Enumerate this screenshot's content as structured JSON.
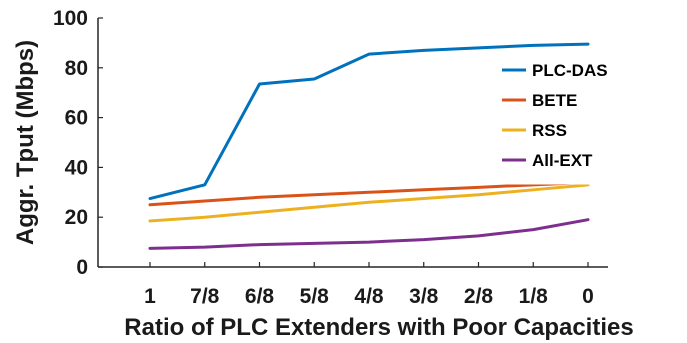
{
  "chart_data": {
    "type": "line",
    "title": "",
    "xlabel": "Ratio of PLC Extenders with Poor Capacities",
    "ylabel": "Aggr. Tput (Mbps)",
    "categories": [
      "1",
      "7/8",
      "6/8",
      "5/8",
      "4/8",
      "3/8",
      "2/8",
      "1/8",
      "0"
    ],
    "ylim": [
      0,
      100
    ],
    "yticks": [
      "0",
      "20",
      "40",
      "60",
      "80",
      "100"
    ],
    "grid": false,
    "legend_position": "top-right",
    "series": [
      {
        "name": "PLC-DAS",
        "color": "#0072bd",
        "values": [
          27.5,
          33,
          73.5,
          75.5,
          85.5,
          87,
          88,
          89,
          89.5
        ]
      },
      {
        "name": "BETE",
        "color": "#d95319",
        "values": [
          25,
          26.5,
          28,
          29,
          30,
          31,
          32,
          33,
          34
        ]
      },
      {
        "name": "RSS",
        "color": "#edb120",
        "values": [
          18.5,
          20,
          22,
          24,
          26,
          27.5,
          29,
          31,
          33
        ]
      },
      {
        "name": "All-EXT",
        "color": "#7e2f8e",
        "values": [
          7.5,
          8,
          9,
          9.5,
          10,
          11,
          12.5,
          15,
          19
        ]
      }
    ]
  }
}
